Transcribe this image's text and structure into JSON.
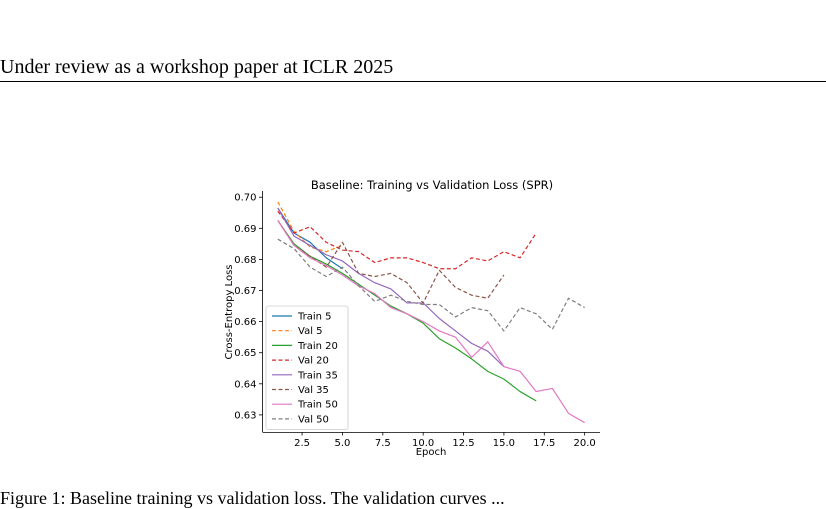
{
  "header": {
    "text": "Under review as a workshop paper at ICLR 2025"
  },
  "caption": {
    "text": "Figure 1: Baseline training vs validation loss. The validation curves ... "
  },
  "chart_data": {
    "type": "line",
    "title": "Baseline: Training vs Validation Loss (SPR)",
    "xlabel": "Epoch",
    "ylabel": "Cross-Entropy Loss",
    "xlim": [
      0.05,
      20.95
    ],
    "ylim": [
      0.6245,
      0.702
    ],
    "xticks": [
      2.5,
      5.0,
      7.5,
      10.0,
      12.5,
      15.0,
      17.5,
      20.0
    ],
    "xtick_labels": [
      "2.5",
      "5.0",
      "7.5",
      "10.0",
      "12.5",
      "15.0",
      "17.5",
      "20.0"
    ],
    "yticks": [
      0.63,
      0.64,
      0.65,
      0.66,
      0.67,
      0.68,
      0.69,
      0.7
    ],
    "ytick_labels": [
      "0.63",
      "0.64",
      "0.65",
      "0.66",
      "0.67",
      "0.68",
      "0.69",
      "0.70"
    ],
    "grid": false,
    "legend_position": "lower-left",
    "series": [
      {
        "name": "Train 5",
        "color": "#1f77b4",
        "dash": false,
        "x": [
          1,
          2,
          3,
          4,
          5
        ],
        "y": [
          0.6965,
          0.6885,
          0.6855,
          0.6805,
          0.677
        ]
      },
      {
        "name": "Val 5",
        "color": "#ff7f0e",
        "dash": true,
        "x": [
          1,
          2,
          3,
          4,
          5
        ],
        "y": [
          0.6985,
          0.689,
          0.684,
          0.6825,
          0.6845
        ]
      },
      {
        "name": "Train 20",
        "color": "#2ca02c",
        "dash": false,
        "x": [
          1,
          2,
          3,
          4,
          5,
          6,
          7,
          8,
          9,
          10,
          11,
          12,
          13,
          14,
          15,
          16,
          17
        ],
        "y": [
          0.6925,
          0.685,
          0.681,
          0.6785,
          0.6755,
          0.672,
          0.6685,
          0.665,
          0.6625,
          0.6595,
          0.6545,
          0.6515,
          0.648,
          0.644,
          0.6415,
          0.6375,
          0.6345
        ]
      },
      {
        "name": "Val 20",
        "color": "#d62728",
        "dash": true,
        "x": [
          1,
          2,
          3,
          4,
          5,
          6,
          7,
          8,
          9,
          10,
          11,
          12,
          13,
          14,
          15,
          16,
          17
        ],
        "y": [
          0.6955,
          0.6885,
          0.6905,
          0.6855,
          0.683,
          0.6825,
          0.679,
          0.6805,
          0.6805,
          0.679,
          0.677,
          0.677,
          0.6805,
          0.6795,
          0.6825,
          0.6805,
          0.6885
        ]
      },
      {
        "name": "Train 35",
        "color": "#9467bd",
        "dash": false,
        "x": [
          1,
          2,
          3,
          4,
          5,
          6,
          7,
          8,
          9,
          10,
          11,
          12,
          13,
          14,
          15
        ],
        "y": [
          0.6965,
          0.6875,
          0.6845,
          0.6815,
          0.6795,
          0.6755,
          0.6725,
          0.6705,
          0.666,
          0.666,
          0.661,
          0.657,
          0.653,
          0.6505,
          0.6455
        ]
      },
      {
        "name": "Val 35",
        "color": "#8c564b",
        "dash": true,
        "x": [
          1,
          2,
          3,
          4,
          5,
          6,
          7,
          8,
          9,
          10,
          11,
          12,
          13,
          14,
          15
        ],
        "y": [
          0.6925,
          0.6845,
          0.681,
          0.6775,
          0.6855,
          0.6755,
          0.6745,
          0.6755,
          0.6725,
          0.666,
          0.6765,
          0.671,
          0.6685,
          0.6675,
          0.675
        ]
      },
      {
        "name": "Train 50",
        "color": "#e377c2",
        "dash": false,
        "x": [
          1,
          2,
          3,
          4,
          5,
          6,
          7,
          8,
          9,
          10,
          11,
          12,
          13,
          14,
          15,
          16,
          17,
          18,
          19,
          20
        ],
        "y": [
          0.6925,
          0.6845,
          0.6805,
          0.678,
          0.675,
          0.6715,
          0.669,
          0.6645,
          0.6625,
          0.66,
          0.657,
          0.655,
          0.6485,
          0.6535,
          0.6455,
          0.644,
          0.6375,
          0.6385,
          0.6305,
          0.6275
        ]
      },
      {
        "name": "Val 50",
        "color": "#7f7f7f",
        "dash": true,
        "x": [
          1,
          2,
          3,
          4,
          5,
          6,
          7,
          8,
          9,
          10,
          11,
          12,
          13,
          14,
          15,
          16,
          17,
          18,
          19,
          20
        ],
        "y": [
          0.6865,
          0.6835,
          0.6775,
          0.6745,
          0.6775,
          0.6715,
          0.6665,
          0.6685,
          0.6665,
          0.6655,
          0.6655,
          0.6615,
          0.6645,
          0.6635,
          0.657,
          0.6645,
          0.6625,
          0.6575,
          0.6675,
          0.6645
        ]
      }
    ]
  }
}
